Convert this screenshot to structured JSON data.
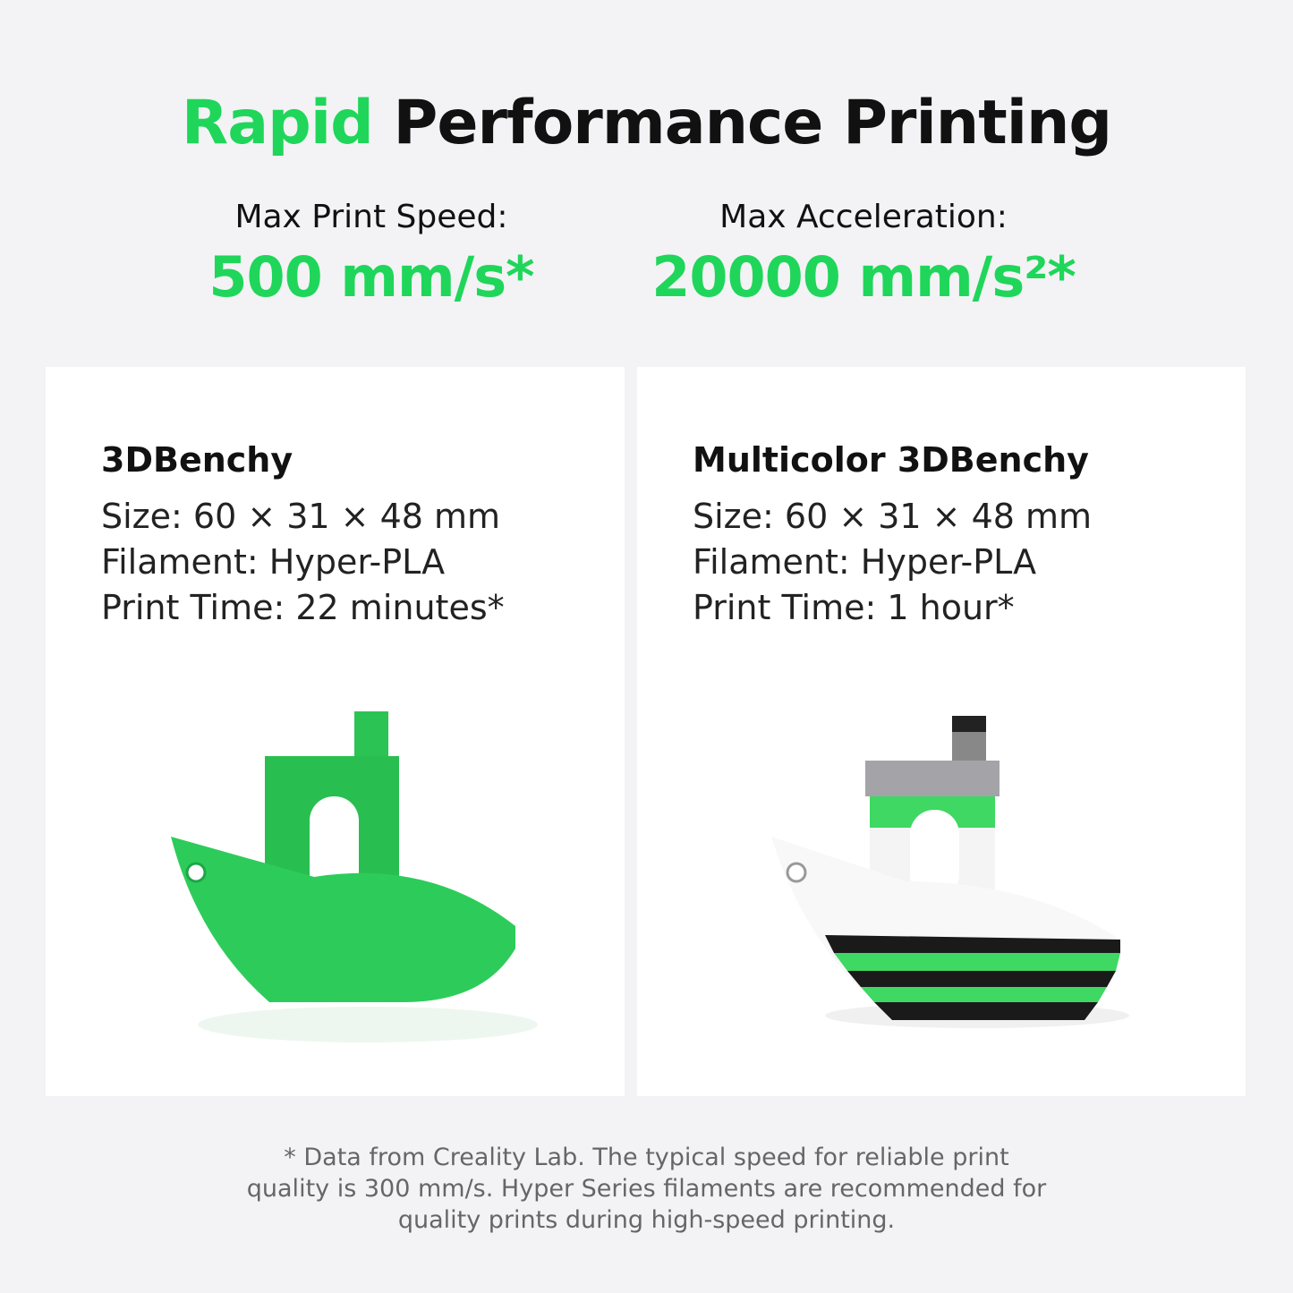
{
  "title": {
    "accent": "Rapid",
    "rest": "Performance Printing"
  },
  "stats": [
    {
      "label": "Max Print Speed:",
      "value": "500 mm/s*"
    },
    {
      "label": "Max Acceleration:",
      "value": "20000 mm/s²*"
    }
  ],
  "cards": [
    {
      "name": "3DBenchy",
      "size": "Size: 60 × 31 × 48 mm",
      "filament": "Filament: Hyper-PLA",
      "time": "Print Time: 22 minutes*"
    },
    {
      "name": "Multicolor 3DBenchy",
      "size": "Size: 60 × 31 × 48 mm",
      "filament": "Filament: Hyper-PLA",
      "time": "Print Time: 1 hour*"
    }
  ],
  "footnote": [
    "* Data from Creality Lab. The typical speed for reliable print",
    "quality is 300 mm/s. Hyper Series filaments are recommended for",
    "quality prints during high-speed printing."
  ],
  "colors": {
    "accent": "#1fd65a",
    "background": "#f3f3f5"
  }
}
